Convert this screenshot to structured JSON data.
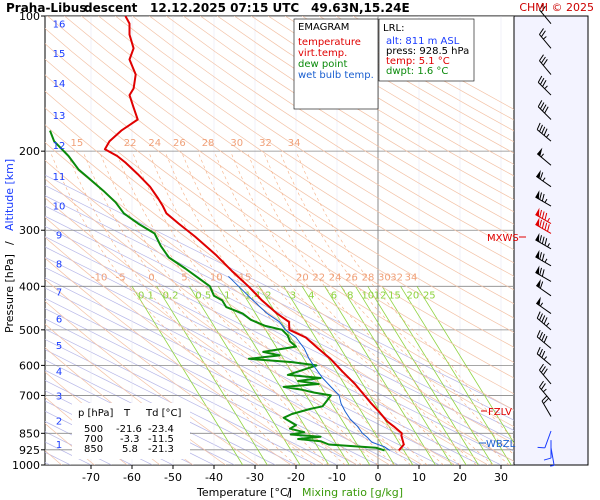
{
  "header": {
    "station": "Praha-Libus",
    "mode": "descent",
    "datetime": "12.12.2025 07:15 UTC",
    "coords": "49.63N,15.24E",
    "copyright": "CHMI © 2025"
  },
  "legend": {
    "title": "EMAGRAM",
    "items": [
      {
        "label": "temperature",
        "color": "#e00000"
      },
      {
        "label": "virt.temp.",
        "color": "#e00000"
      },
      {
        "label": "dew point",
        "color": "#0a8a0a"
      },
      {
        "label": "wet bulb temp.",
        "color": "#1a5fd0"
      }
    ]
  },
  "lrl": {
    "title": "LRL:",
    "alt": "alt: 811 m ASL",
    "press": "press: 928.5 hPa",
    "temp": "temp: 5.1 °C",
    "dwpt": "dwpt: 1.6 °C"
  },
  "table": {
    "headers": [
      "p [hPa]",
      "T",
      "Td [°C]"
    ],
    "rows": [
      [
        "500",
        "-21.6",
        "-23.4"
      ],
      [
        "700",
        "-3.3",
        "-11.5"
      ],
      [
        "850",
        "5.8",
        "-21.3"
      ]
    ]
  },
  "axes": {
    "ylabel_pressure": "Pressure [hPa]",
    "ylabel_sep": "/",
    "ylabel_altitude": "Altitude [km]",
    "xlabel_temp": "Temperature [°C]",
    "xlabel_sep": "/",
    "xlabel_mix": "Mixing ratio [g/kg]"
  },
  "level_markers": {
    "mxws": "MXWS",
    "fzlv": "FZLV",
    "wbzl": "WBZL"
  },
  "chart_data": {
    "type": "line",
    "diagram": "emagram",
    "x_ticks": [
      -70,
      -60,
      -50,
      -40,
      -30,
      -20,
      -10,
      0,
      10,
      20,
      30
    ],
    "xlim": [
      -80,
      35
    ],
    "p_ticks": [
      100,
      200,
      300,
      400,
      500,
      600,
      700,
      850,
      925,
      1000
    ],
    "ylim_hpa": [
      100,
      1000
    ],
    "y_scale": "log",
    "altitude_ticks_km": [
      1,
      2,
      3,
      4,
      5,
      6,
      7,
      8,
      9,
      10,
      11,
      12,
      13,
      14,
      15,
      16
    ],
    "altitude_pressure_hpa": {
      "1": 899,
      "2": 795,
      "3": 701,
      "4": 617,
      "5": 541,
      "6": 472,
      "7": 411,
      "8": 356,
      "9": 307,
      "10": 264,
      "11": 227,
      "12": 194,
      "13": 166,
      "14": 141,
      "15": 121,
      "16": 104
    },
    "dry_adiabat_labels": [
      -10,
      -5,
      0,
      5,
      10,
      15,
      20,
      22,
      24,
      26,
      28,
      30,
      32,
      34
    ],
    "upper_isotherm_labels": [
      15,
      22,
      24,
      26,
      28,
      30,
      32,
      34
    ],
    "mixing_ratio_labels": [
      0.1,
      0.2,
      0.5,
      1,
      1.4,
      2,
      3,
      4,
      6,
      8,
      10,
      12,
      15,
      20,
      25
    ],
    "mixing_ratio_label_text": [
      "0.1",
      "0.2",
      "0.5",
      "1",
      "1.4",
      "2",
      "3",
      "4",
      "6",
      "8",
      "10",
      "12",
      "15",
      "20",
      "25"
    ],
    "series": [
      {
        "name": "temperature",
        "color": "#e00000",
        "points": [
          [
            928,
            5.1
          ],
          [
            900,
            6.3
          ],
          [
            880,
            6.0
          ],
          [
            860,
            5.7
          ],
          [
            850,
            5.8
          ],
          [
            820,
            3.8
          ],
          [
            800,
            2.3
          ],
          [
            760,
            0.2
          ],
          [
            730,
            -1.6
          ],
          [
            700,
            -3.3
          ],
          [
            660,
            -5.6
          ],
          [
            620,
            -8.6
          ],
          [
            580,
            -11.6
          ],
          [
            550,
            -14.6
          ],
          [
            520,
            -17.6
          ],
          [
            500,
            -21.6
          ],
          [
            480,
            -21.7
          ],
          [
            460,
            -24.6
          ],
          [
            430,
            -28.3
          ],
          [
            400,
            -31.6
          ],
          [
            370,
            -35.6
          ],
          [
            340,
            -39.6
          ],
          [
            310,
            -44.6
          ],
          [
            290,
            -48.6
          ],
          [
            275,
            -51.6
          ],
          [
            265,
            -52.5
          ],
          [
            255,
            -53.6
          ],
          [
            240,
            -55.6
          ],
          [
            225,
            -58.6
          ],
          [
            212,
            -61.6
          ],
          [
            205,
            -63.6
          ],
          [
            198,
            -66.6
          ],
          [
            190,
            -65.5
          ],
          [
            180,
            -62.6
          ],
          [
            175,
            -60.6
          ],
          [
            170,
            -58.6
          ],
          [
            160,
            -59.6
          ],
          [
            150,
            -60.6
          ],
          [
            145,
            -59.6
          ],
          [
            135,
            -59.1
          ],
          [
            125,
            -60.6
          ],
          [
            118,
            -59.6
          ],
          [
            110,
            -60.6
          ],
          [
            104,
            -60.6
          ],
          [
            100,
            -61.6
          ]
        ]
      },
      {
        "name": "dew point",
        "color": "#0a8a0a",
        "points": [
          [
            928,
            1.6
          ],
          [
            915,
            -0.5
          ],
          [
            900,
            -12.0
          ],
          [
            885,
            -14.0
          ],
          [
            875,
            -19.5
          ],
          [
            865,
            -14.0
          ],
          [
            855,
            -21.3
          ],
          [
            845,
            -18.0
          ],
          [
            830,
            -21.5
          ],
          [
            815,
            -20.0
          ],
          [
            800,
            -21.5
          ],
          [
            785,
            -23.0
          ],
          [
            770,
            -21.0
          ],
          [
            750,
            -16.5
          ],
          [
            740,
            -13.5
          ],
          [
            720,
            -12.5
          ],
          [
            700,
            -11.5
          ],
          [
            690,
            -15.5
          ],
          [
            680,
            -18.5
          ],
          [
            670,
            -23.0
          ],
          [
            660,
            -14.5
          ],
          [
            650,
            -19.5
          ],
          [
            640,
            -14.0
          ],
          [
            630,
            -22.0
          ],
          [
            615,
            -18.5
          ],
          [
            600,
            -15.0
          ],
          [
            590,
            -21.0
          ],
          [
            580,
            -31.5
          ],
          [
            570,
            -24.0
          ],
          [
            560,
            -28.0
          ],
          [
            545,
            -20.0
          ],
          [
            530,
            -21.5
          ],
          [
            515,
            -22.0
          ],
          [
            500,
            -23.4
          ],
          [
            490,
            -27.5
          ],
          [
            475,
            -31.0
          ],
          [
            460,
            -33.0
          ],
          [
            445,
            -37.0
          ],
          [
            430,
            -38.0
          ],
          [
            420,
            -40.0
          ],
          [
            400,
            -41.0
          ],
          [
            385,
            -43.5
          ],
          [
            365,
            -47.0
          ],
          [
            345,
            -51.0
          ],
          [
            325,
            -53.0
          ],
          [
            305,
            -54.5
          ],
          [
            290,
            -58.5
          ],
          [
            275,
            -62.0
          ],
          [
            260,
            -64.0
          ],
          [
            245,
            -67.0
          ],
          [
            230,
            -70.5
          ],
          [
            220,
            -73.0
          ],
          [
            205,
            -75.5
          ],
          [
            190,
            -79.0
          ],
          [
            180,
            -80.0
          ]
        ]
      },
      {
        "name": "wet bulb temp.",
        "color": "#1a5fd0",
        "points": [
          [
            928,
            2.9
          ],
          [
            910,
            1.5
          ],
          [
            890,
            -1.5
          ],
          [
            870,
            -2.5
          ],
          [
            850,
            -3.8
          ],
          [
            820,
            -5.0
          ],
          [
            790,
            -6.8
          ],
          [
            760,
            -8.0
          ],
          [
            730,
            -9.0
          ],
          [
            700,
            -9.5
          ],
          [
            670,
            -11.5
          ],
          [
            640,
            -13.5
          ],
          [
            610,
            -15.2
          ],
          [
            580,
            -16.8
          ],
          [
            550,
            -18.0
          ],
          [
            520,
            -20.0
          ],
          [
            500,
            -22.6
          ],
          [
            480,
            -24.0
          ],
          [
            460,
            -27.0
          ],
          [
            430,
            -30.5
          ],
          [
            400,
            -34.0
          ],
          [
            380,
            -36.5
          ]
        ]
      }
    ],
    "wind_barbs": [
      {
        "p": 104,
        "dir": 320,
        "speed_kt": 20
      },
      {
        "p": 118,
        "dir": 320,
        "speed_kt": 25
      },
      {
        "p": 135,
        "dir": 320,
        "speed_kt": 30
      },
      {
        "p": 150,
        "dir": 315,
        "speed_kt": 35
      },
      {
        "p": 170,
        "dir": 315,
        "speed_kt": 40
      },
      {
        "p": 190,
        "dir": 310,
        "speed_kt": 45
      },
      {
        "p": 215,
        "dir": 310,
        "speed_kt": 55
      },
      {
        "p": 240,
        "dir": 305,
        "speed_kt": 65
      },
      {
        "p": 265,
        "dir": 300,
        "speed_kt": 75
      },
      {
        "p": 290,
        "dir": 300,
        "speed_kt": 85
      },
      {
        "p": 305,
        "dir": 300,
        "speed_kt": 90
      },
      {
        "p": 330,
        "dir": 300,
        "speed_kt": 85
      },
      {
        "p": 360,
        "dir": 300,
        "speed_kt": 75
      },
      {
        "p": 390,
        "dir": 300,
        "speed_kt": 70
      },
      {
        "p": 420,
        "dir": 305,
        "speed_kt": 60
      },
      {
        "p": 460,
        "dir": 305,
        "speed_kt": 55
      },
      {
        "p": 500,
        "dir": 310,
        "speed_kt": 45
      },
      {
        "p": 550,
        "dir": 310,
        "speed_kt": 40
      },
      {
        "p": 600,
        "dir": 310,
        "speed_kt": 35
      },
      {
        "p": 660,
        "dir": 320,
        "speed_kt": 30
      },
      {
        "p": 720,
        "dir": 320,
        "speed_kt": 25
      },
      {
        "p": 780,
        "dir": 330,
        "speed_kt": 20
      },
      {
        "p": 840,
        "dir": 200,
        "speed_kt": 10
      },
      {
        "p": 880,
        "dir": 180,
        "speed_kt": 10
      },
      {
        "p": 915,
        "dir": 170,
        "speed_kt": 5
      }
    ],
    "levels": [
      {
        "name": "MXWS",
        "p": 307
      },
      {
        "name": "FZLV",
        "p": 760
      },
      {
        "name": "WBZL",
        "p": 895
      }
    ]
  }
}
